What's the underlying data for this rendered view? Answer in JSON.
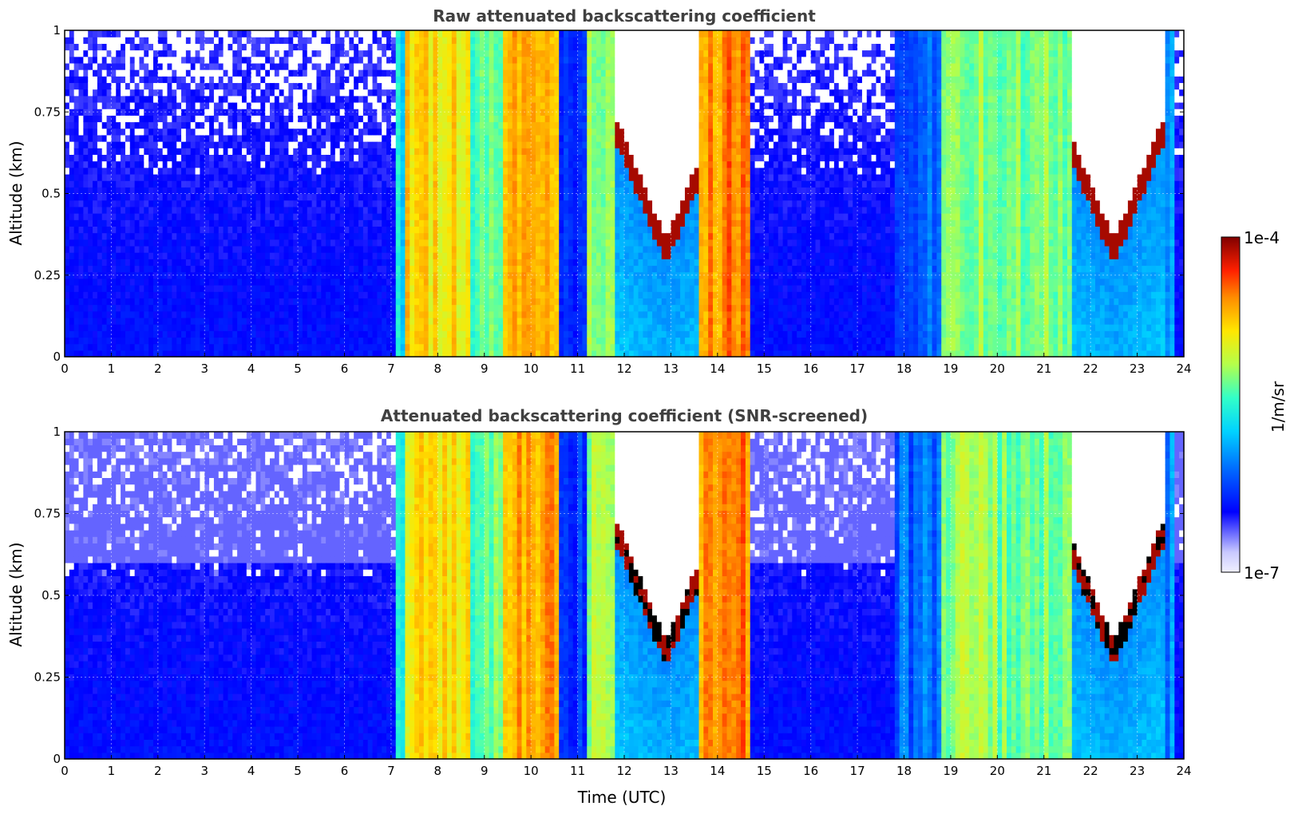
{
  "chart_data": [
    {
      "type": "heatmap",
      "title": "Raw attenuated backscattering coefficient",
      "xlabel": "",
      "ylabel": "Altitude (km)",
      "xlim": [
        0,
        24
      ],
      "ylim": [
        0,
        1
      ],
      "xticks": [
        "0",
        "1",
        "2",
        "3",
        "4",
        "5",
        "6",
        "7",
        "8",
        "9",
        "10",
        "11",
        "12",
        "13",
        "14",
        "15",
        "16",
        "17",
        "18",
        "19",
        "20",
        "21",
        "22",
        "23",
        "24"
      ],
      "yticks": [
        "0",
        "0.25",
        "0.5",
        "0.75",
        "1"
      ],
      "grid": true,
      "colormap": "jet",
      "color_scale": "log",
      "screened": false,
      "time_profile": [
        {
          "t_start": 0.0,
          "t_end": 7.1,
          "level": "low",
          "description_level": 0.18
        },
        {
          "t_start": 7.1,
          "t_end": 7.35,
          "level": 0.45
        },
        {
          "t_start": 7.35,
          "t_end": 8.7,
          "level": 0.72
        },
        {
          "t_start": 8.7,
          "t_end": 9.4,
          "level": 0.55
        },
        {
          "t_start": 9.4,
          "t_end": 10.6,
          "level": 0.78
        },
        {
          "t_start": 10.6,
          "t_end": 11.2,
          "level": 0.25
        },
        {
          "t_start": 11.2,
          "t_end": 11.8,
          "level": 0.6
        },
        {
          "t_start": 11.8,
          "t_end": 13.6,
          "level": 0.38
        },
        {
          "t_start": 13.6,
          "t_end": 14.7,
          "level": 0.82
        },
        {
          "t_start": 14.7,
          "t_end": 17.8,
          "level": 0.16
        },
        {
          "t_start": 17.8,
          "t_end": 18.8,
          "level": 0.3
        },
        {
          "t_start": 18.8,
          "t_end": 19.7,
          "level": 0.6
        },
        {
          "t_start": 19.7,
          "t_end": 21.6,
          "level": 0.58
        },
        {
          "t_start": 21.6,
          "t_end": 23.8,
          "level": 0.33
        }
      ]
    },
    {
      "type": "heatmap",
      "title": "Attenuated backscattering coefficient (SNR-screened)",
      "xlabel": "Time (UTC)",
      "ylabel": "Altitude (km)",
      "xlim": [
        0,
        24
      ],
      "ylim": [
        0,
        1
      ],
      "xticks": [
        "0",
        "1",
        "2",
        "3",
        "4",
        "5",
        "6",
        "7",
        "8",
        "9",
        "10",
        "11",
        "12",
        "13",
        "14",
        "15",
        "16",
        "17",
        "18",
        "19",
        "20",
        "21",
        "22",
        "23",
        "24"
      ],
      "yticks": [
        "0",
        "0.25",
        "0.5",
        "0.75",
        "1"
      ],
      "grid": true,
      "colormap": "jet",
      "color_scale": "log",
      "screened": true,
      "time_profile": []
    }
  ],
  "colorbar": {
    "label": "1/m/sr",
    "max_label": "1e-4",
    "min_label": "1e-7",
    "vmin": 1e-07,
    "vmax": 0.0001,
    "scale": "log"
  }
}
